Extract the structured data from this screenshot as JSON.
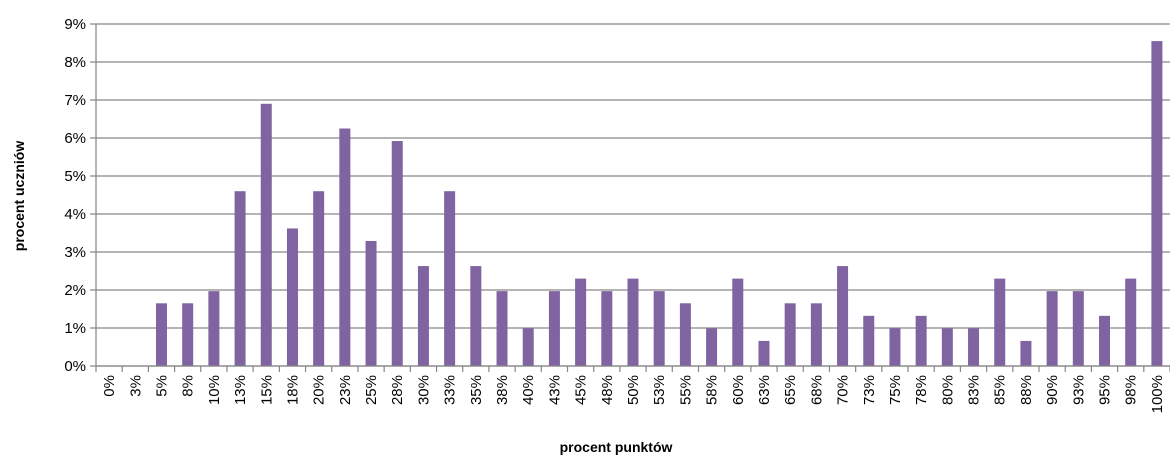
{
  "chart_data": {
    "type": "bar",
    "xlabel": "procent punktów",
    "ylabel": "procent  uczniów",
    "ylim": [
      0,
      9
    ],
    "y_ticks": [
      "0%",
      "1%",
      "2%",
      "3%",
      "4%",
      "5%",
      "6%",
      "7%",
      "8%",
      "9%"
    ],
    "grid": "horizontal",
    "bar_color": "#8064a2",
    "categories": [
      "0%",
      "3%",
      "5%",
      "8%",
      "10%",
      "13%",
      "15%",
      "18%",
      "20%",
      "23%",
      "25%",
      "28%",
      "30%",
      "33%",
      "35%",
      "38%",
      "40%",
      "43%",
      "45%",
      "48%",
      "50%",
      "53%",
      "55%",
      "58%",
      "60%",
      "63%",
      "65%",
      "68%",
      "70%",
      "73%",
      "75%",
      "78%",
      "80%",
      "83%",
      "85%",
      "88%",
      "90%",
      "93%",
      "95%",
      "98%",
      "100%"
    ],
    "values": [
      0,
      0,
      1.65,
      1.65,
      1.97,
      4.6,
      6.9,
      3.62,
      4.6,
      6.25,
      3.29,
      5.92,
      2.63,
      4.6,
      2.63,
      1.97,
      0.99,
      1.97,
      2.3,
      1.97,
      2.3,
      1.97,
      1.65,
      0.99,
      2.3,
      0.66,
      1.65,
      1.65,
      2.63,
      1.32,
      0.99,
      1.32,
      0.99,
      0.99,
      2.3,
      0.66,
      1.97,
      1.97,
      1.32,
      2.3,
      8.55
    ]
  }
}
